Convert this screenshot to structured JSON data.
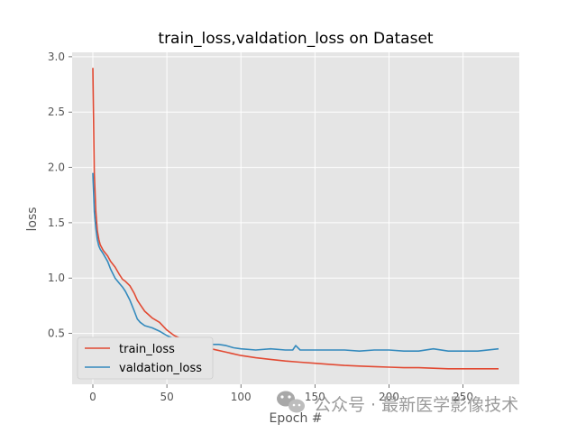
{
  "chart_data": {
    "type": "line",
    "title": "train_loss,valdation_loss on Dataset",
    "xlabel": "Epoch #",
    "ylabel": "loss",
    "xlim": [
      -14,
      288
    ],
    "ylim": [
      0.04,
      3.04
    ],
    "xticks": [
      0,
      50,
      100,
      150,
      200,
      250
    ],
    "yticks": [
      0.5,
      1.0,
      1.5,
      2.0,
      2.5,
      3.0
    ],
    "xtick_labels": [
      "0",
      "50",
      "100",
      "150",
      "200",
      "250"
    ],
    "ytick_labels": [
      "0.5",
      "1.0",
      "1.5",
      "2.0",
      "2.5",
      "3.0"
    ],
    "grid": true,
    "legend_position": "lower-left",
    "series": [
      {
        "name": "train_loss",
        "color": "#E24A33",
        "x": [
          0,
          1,
          2,
          3,
          4,
          5,
          7,
          10,
          12,
          15,
          18,
          20,
          22,
          25,
          28,
          30,
          32,
          35,
          40,
          45,
          50,
          55,
          60,
          65,
          70,
          80,
          90,
          100,
          110,
          120,
          130,
          140,
          150,
          160,
          170,
          180,
          190,
          200,
          210,
          220,
          230,
          240,
          250,
          260,
          274
        ],
        "y": [
          2.9,
          1.95,
          1.6,
          1.43,
          1.35,
          1.3,
          1.25,
          1.2,
          1.15,
          1.1,
          1.03,
          0.99,
          0.97,
          0.93,
          0.86,
          0.8,
          0.76,
          0.7,
          0.64,
          0.6,
          0.53,
          0.48,
          0.45,
          0.42,
          0.4,
          0.36,
          0.33,
          0.3,
          0.28,
          0.265,
          0.25,
          0.24,
          0.23,
          0.22,
          0.21,
          0.205,
          0.2,
          0.195,
          0.19,
          0.19,
          0.185,
          0.18,
          0.18,
          0.18,
          0.18
        ]
      },
      {
        "name": "valdation_loss",
        "color": "#348ABD",
        "x": [
          0,
          1,
          2,
          3,
          4,
          5,
          7,
          10,
          12,
          15,
          18,
          20,
          22,
          25,
          28,
          30,
          32,
          35,
          40,
          45,
          50,
          55,
          60,
          65,
          70,
          75,
          80,
          85,
          90,
          95,
          100,
          110,
          120,
          130,
          135,
          137,
          140,
          150,
          160,
          170,
          180,
          190,
          200,
          210,
          220,
          230,
          240,
          250,
          260,
          274
        ],
        "y": [
          1.95,
          1.6,
          1.45,
          1.35,
          1.29,
          1.26,
          1.22,
          1.15,
          1.08,
          1.0,
          0.95,
          0.92,
          0.88,
          0.8,
          0.7,
          0.63,
          0.6,
          0.57,
          0.55,
          0.52,
          0.48,
          0.45,
          0.44,
          0.42,
          0.42,
          0.41,
          0.4,
          0.4,
          0.39,
          0.37,
          0.36,
          0.35,
          0.36,
          0.35,
          0.35,
          0.39,
          0.35,
          0.35,
          0.35,
          0.35,
          0.34,
          0.35,
          0.35,
          0.34,
          0.34,
          0.36,
          0.34,
          0.34,
          0.34,
          0.36
        ]
      }
    ]
  },
  "watermark": {
    "text": "公众号 · 最新医学影像技术",
    "icon": "wechat-logo-icon"
  }
}
